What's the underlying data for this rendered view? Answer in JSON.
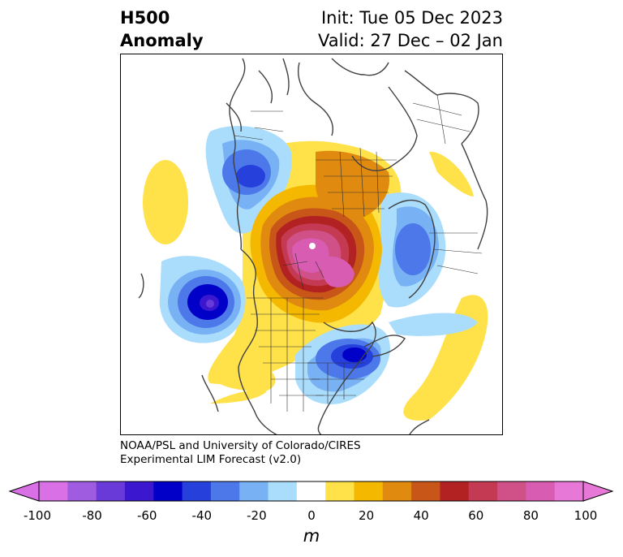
{
  "header": {
    "title_line1": "H500",
    "title_line2": "Anomaly",
    "init_text": "Init: Tue 05 Dec 2023",
    "valid_text": "Valid: 27 Dec – 02 Jan"
  },
  "credit": {
    "line1": "NOAA/PSL and University of Colorado/CIRES",
    "line2": "Experimental LIM Forecast (v2.0)"
  },
  "colorbar": {
    "unit": "m",
    "ticks": [
      "-100",
      "-80",
      "-60",
      "-40",
      "-20",
      "0",
      "20",
      "40",
      "60",
      "80",
      "100"
    ],
    "colors": [
      "#d970e6",
      "#a05ce0",
      "#6a3ad8",
      "#3b18d0",
      "#0000c8",
      "#2640dc",
      "#4c78ea",
      "#78b2f5",
      "#aadcfc",
      "#ffffff",
      "#ffe14a",
      "#f5b800",
      "#e08a10",
      "#c85618",
      "#b22222",
      "#c43a52",
      "#d05088",
      "#d85cb2",
      "#e878d8"
    ],
    "under_color": "#d970e6",
    "over_color": "#e878d8"
  }
}
